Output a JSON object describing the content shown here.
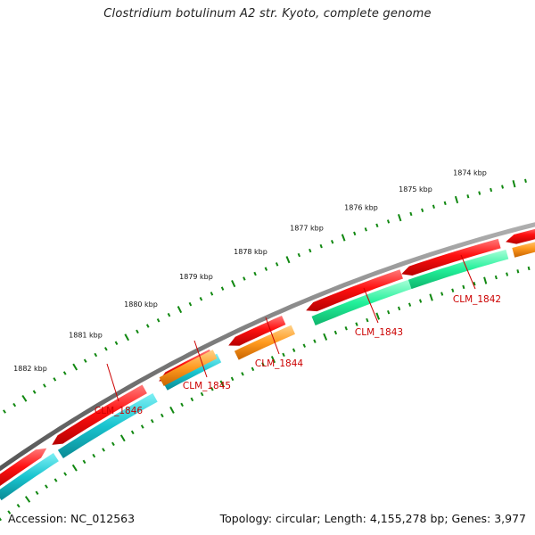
{
  "title": "Clostridium botulinum A2 str. Kyoto, complete genome",
  "footer": {
    "accession": "Accession: NC_012563",
    "summary": "Topology: circular; Length: 4,155,278 bp; Genes: 3,977"
  },
  "scale": {
    "unit": "kbp",
    "labels": [
      "1882 kbp",
      "1881 kbp",
      "1880 kbp",
      "1879 kbp",
      "1878 kbp",
      "1877 kbp",
      "1876 kbp",
      "1875 kbp",
      "1874 kbp"
    ]
  },
  "genes": [
    {
      "locus": "CLM_1846",
      "color": "#19c4cf"
    },
    {
      "locus": "CLM_1845",
      "color": "#19c4cf"
    },
    {
      "locus": "CLM_1844",
      "color": "#ff9a1f"
    },
    {
      "locus": "CLM_1843",
      "color": "#22f09a"
    },
    {
      "locus": "CLM_1842",
      "color": "#22f09a"
    }
  ],
  "colors": {
    "cds": "#ff1010",
    "backbone": "#7a7a7a",
    "ticks": "#118811",
    "label": "#cc0000"
  }
}
